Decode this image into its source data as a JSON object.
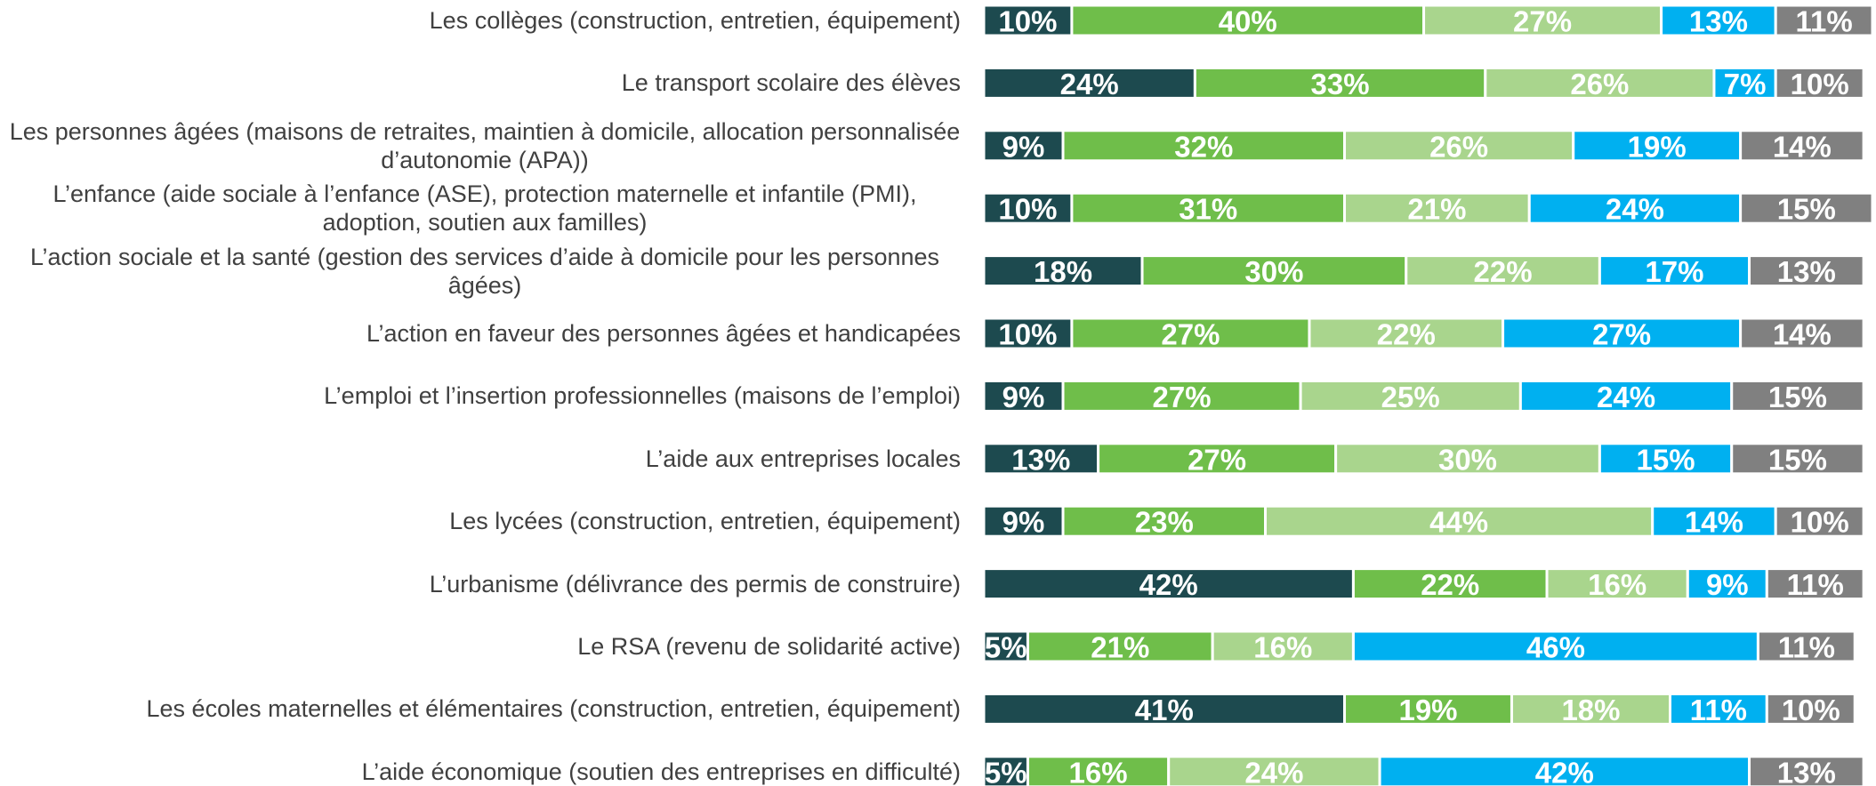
{
  "chart_data": {
    "type": "stacked-barh",
    "categories": [
      "Les collèges (construction, entretien, équipement)",
      "Le transport scolaire des élèves",
      "Les personnes âgées (maisons de retraites, maintien à domicile, allocation personnalisée d’autonomie (APA))",
      "L’enfance (aide sociale à l’enfance (ASE), protection maternelle et infantile (PMI), adoption, soutien aux familles)",
      "L’action sociale et la santé (gestion des services d’aide à domicile pour les personnes âgées)",
      "L’action en faveur des personnes âgées et handicapées",
      "L’emploi et l’insertion professionnelles (maisons de l’emploi)",
      "L’aide aux entreprises locales",
      "Les lycées (construction, entretien, équipement)",
      "L’urbanisme (délivrance des permis de construire)",
      "Le RSA (revenu de solidarité active)",
      "Les écoles maternelles et élémentaires (construction, entretien, équipement)",
      "L’aide économique (soutien des entreprises en difficulté)"
    ],
    "series": [
      {
        "color": "#1d4a4f",
        "values": [
          10,
          24,
          9,
          10,
          18,
          10,
          9,
          13,
          9,
          42,
          5,
          41,
          5
        ],
        "value_labels": [
          "10%",
          "24%",
          "9%",
          "10%",
          "18%",
          "10%",
          "9%",
          "13%",
          "9%",
          "42%",
          "5%",
          "41%",
          "5%"
        ]
      },
      {
        "color": "#6fbe4a",
        "values": [
          40,
          33,
          32,
          31,
          30,
          27,
          27,
          27,
          23,
          22,
          21,
          19,
          16
        ],
        "value_labels": [
          "40%",
          "33%",
          "32%",
          "31%",
          "30%",
          "27%",
          "27%",
          "27%",
          "23%",
          "22%",
          "21%",
          "19%",
          "16%"
        ]
      },
      {
        "color": "#a9d58d",
        "values": [
          27,
          26,
          26,
          21,
          22,
          22,
          25,
          30,
          44,
          16,
          16,
          18,
          24
        ],
        "value_labels": [
          "27%",
          "26%",
          "26%",
          "21%",
          "22%",
          "22%",
          "25%",
          "30%",
          "44%",
          "16%",
          "16%",
          "18%",
          "24%"
        ]
      },
      {
        "color": "#00b0f0",
        "values": [
          13,
          7,
          19,
          24,
          17,
          27,
          24,
          15,
          14,
          9,
          46,
          11,
          42
        ],
        "value_labels": [
          "13%",
          "7%",
          "19%",
          "24%",
          "17%",
          "27%",
          "24%",
          "15%",
          "14%",
          "9%",
          "46%",
          "11%",
          "42%"
        ]
      },
      {
        "color": "#808080",
        "values": [
          11,
          10,
          14,
          15,
          13,
          14,
          15,
          15,
          10,
          11,
          11,
          10,
          13
        ],
        "value_labels": [
          "11%",
          "10%",
          "14%",
          "15%",
          "13%",
          "14%",
          "15%",
          "15%",
          "10%",
          "11%",
          "11%",
          "10%",
          "13%"
        ]
      }
    ],
    "xlim": [
      0,
      101
    ]
  }
}
